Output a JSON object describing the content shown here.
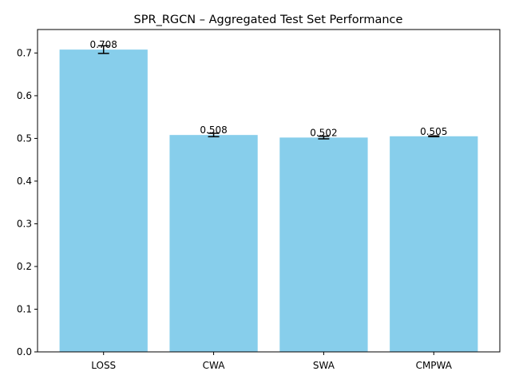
{
  "chart_data": {
    "type": "bar",
    "title": "SPR_RGCN – Aggregated Test Set Performance",
    "xlabel": "",
    "ylabel": "",
    "categories": [
      "LOSS",
      "CWA",
      "SWA",
      "CMPWA"
    ],
    "values": [
      0.708,
      0.508,
      0.502,
      0.505
    ],
    "errors": [
      0.009,
      0.004,
      0.003,
      0.001
    ],
    "data_labels": [
      "0.708",
      "0.508",
      "0.502",
      "0.505"
    ],
    "ylim": [
      0,
      0.755
    ],
    "yticks": [
      0.0,
      0.1,
      0.2,
      0.3,
      0.4,
      0.5,
      0.6,
      0.7
    ],
    "ytick_labels": [
      "0.0",
      "0.1",
      "0.2",
      "0.3",
      "0.4",
      "0.5",
      "0.6",
      "0.7"
    ],
    "grid": false,
    "legend": "none",
    "bar_color": "#87ceeb",
    "error_color": "#000000"
  }
}
